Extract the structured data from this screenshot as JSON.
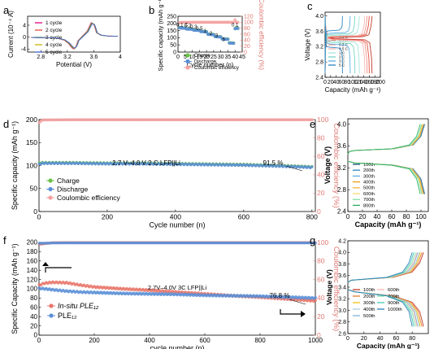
{
  "figure": {
    "colors": {
      "axis": "#000000",
      "pink": "#f4a1a1",
      "green": "#6cc04a",
      "blue": "#5b8fd6",
      "red": "#e8756a",
      "ce_axis": "#e07a73"
    }
  },
  "chart_data": [
    {
      "panel": "a",
      "type": "line",
      "xlabel": "Potential (V)",
      "ylabel": "Current (10⁻⁴ A)",
      "xlim": [
        2.6,
        4.0
      ],
      "ylim": [
        -5,
        7
      ],
      "xticks": [
        2.8,
        3.2,
        3.6,
        4.0
      ],
      "yticks": [
        -4,
        0,
        4
      ],
      "legend_position": "top-left",
      "series": [
        {
          "name": "1 cycle",
          "color": "#e6007e"
        },
        {
          "name": "2 cycle",
          "color": "#e74c3c"
        },
        {
          "name": "3 cycle",
          "color": "#27ae60"
        },
        {
          "name": "4 cycle",
          "color": "#c8b400"
        },
        {
          "name": "5 cycle",
          "color": "#3a5fcd"
        }
      ],
      "curve": {
        "x": [
          2.65,
          2.9,
          3.05,
          3.15,
          3.22,
          3.27,
          3.3,
          3.33,
          3.36,
          3.42,
          3.5,
          3.56,
          3.6,
          3.64,
          3.7,
          3.8,
          3.95
        ],
        "y": [
          -0.1,
          -0.2,
          -0.4,
          -1.0,
          -2.2,
          -3.6,
          -4.0,
          -3.2,
          -1.2,
          0.2,
          2.0,
          4.9,
          4.4,
          1.5,
          0.7,
          0.4,
          0.3
        ]
      }
    },
    {
      "panel": "b",
      "type": "scatter",
      "xlabel": "Cycle number (n)",
      "ylabel": "Specific capacity (mAh g⁻¹)",
      "y2label": "Coulombic efficiency (%)",
      "xlim": [
        0,
        45
      ],
      "ylim": [
        0,
        250
      ],
      "y2lim": [
        0,
        120
      ],
      "xticks": [
        0,
        5,
        10,
        15,
        20,
        25,
        30,
        35,
        40,
        45
      ],
      "yticks": [
        0,
        50,
        100,
        150,
        200,
        250
      ],
      "y2ticks": [
        0,
        20,
        40,
        60,
        80,
        100,
        120
      ],
      "legend": [
        "Charge",
        "Discharge",
        "Coulombic efficiency"
      ],
      "legend_position": "bottom-left",
      "rate_labels": [
        "0.1 C",
        "0.2",
        "0.3",
        "0.5",
        "1",
        "2",
        "3",
        "5",
        "0.1"
      ],
      "rate_label_points": [
        [
          3,
          180
        ],
        [
          7,
          174
        ],
        [
          11,
          166
        ],
        [
          15,
          154
        ],
        [
          19,
          136
        ],
        [
          23,
          120
        ],
        [
          27,
          104
        ],
        [
          32,
          78
        ],
        [
          40,
          178
        ]
      ],
      "series": [
        {
          "name": "Charge",
          "color": "#6cc04a",
          "x": [
            1,
            2,
            3,
            4,
            5,
            6,
            7,
            8,
            9,
            10,
            11,
            12,
            13,
            14,
            15,
            16,
            17,
            18,
            19,
            20,
            21,
            22,
            23,
            24,
            25,
            26,
            27,
            28,
            29,
            30,
            31,
            32,
            33,
            34,
            35,
            36,
            37,
            38,
            39,
            40,
            41,
            42
          ],
          "y": [
            172,
            170,
            169,
            168,
            168,
            163,
            162,
            162,
            161,
            161,
            155,
            154,
            154,
            153,
            153,
            145,
            144,
            144,
            143,
            143,
            126,
            125,
            124,
            124,
            123,
            110,
            109,
            108,
            108,
            107,
            93,
            92,
            92,
            91,
            91,
            65,
            64,
            64,
            63,
            165,
            168,
            167
          ]
        },
        {
          "name": "Discharge",
          "color": "#5b8fd6",
          "x": [
            1,
            2,
            3,
            4,
            5,
            6,
            7,
            8,
            9,
            10,
            11,
            12,
            13,
            14,
            15,
            16,
            17,
            18,
            19,
            20,
            21,
            22,
            23,
            24,
            25,
            26,
            27,
            28,
            29,
            30,
            31,
            32,
            33,
            34,
            35,
            36,
            37,
            38,
            39,
            40,
            41,
            42
          ],
          "y": [
            170,
            168,
            167,
            167,
            166,
            161,
            160,
            160,
            159,
            159,
            153,
            152,
            152,
            151,
            151,
            143,
            142,
            142,
            141,
            141,
            124,
            123,
            122,
            122,
            121,
            108,
            107,
            106,
            106,
            105,
            91,
            90,
            90,
            89,
            89,
            63,
            62,
            62,
            61,
            163,
            166,
            165
          ]
        },
        {
          "name": "Coulombic efficiency",
          "color": "#f4a1a1",
          "axis": "right",
          "x": [
            1,
            2,
            3,
            4,
            5,
            6,
            7,
            8,
            9,
            10,
            11,
            12,
            13,
            14,
            15,
            16,
            17,
            18,
            19,
            20,
            21,
            22,
            23,
            24,
            25,
            26,
            27,
            28,
            29,
            30,
            31,
            32,
            33,
            34,
            35,
            36,
            37,
            38,
            39,
            40,
            41,
            42
          ],
          "y": [
            98,
            99.5,
            99.6,
            99.5,
            99.7,
            99.6,
            99.8,
            99.7,
            99.6,
            99.8,
            99.7,
            99.9,
            99.8,
            99.7,
            99.8,
            99.9,
            99.8,
            99.7,
            99.8,
            99.9,
            99.8,
            99.7,
            99.9,
            99.8,
            99.8,
            99.9,
            99.8,
            99.7,
            99.9,
            99.8,
            99.9,
            99.8,
            99.9,
            99.8,
            99.9,
            99.8,
            99.7,
            99.9,
            99.8,
            108,
            100,
            99.8
          ]
        }
      ]
    },
    {
      "panel": "c",
      "type": "line",
      "xlabel": "Capacity (mAh g⁻¹)",
      "ylabel": "Voltage (V)",
      "xlim": [
        0,
        200
      ],
      "ylim": [
        2.4,
        4.1
      ],
      "xticks": [
        0,
        20,
        40,
        60,
        80,
        100,
        120,
        140,
        160,
        180,
        200
      ],
      "yticks": [
        2.4,
        2.8,
        3.2,
        3.6,
        4.0
      ],
      "legend_position": "center-left",
      "series": [
        {
          "name": "0.1 C",
          "color": "#c0392b",
          "capacity": 170,
          "plateau_charge": 3.45,
          "plateau_discharge": 3.4
        },
        {
          "name": "0.2 C",
          "color": "#e74c3c",
          "capacity": 160,
          "plateau_charge": 3.46,
          "plateau_discharge": 3.39
        },
        {
          "name": "0.3 C",
          "color": "#f1948a",
          "capacity": 152,
          "plateau_charge": 3.47,
          "plateau_discharge": 3.38
        },
        {
          "name": "0.5 C",
          "color": "#f5b7b1",
          "capacity": 144,
          "plateau_charge": 3.48,
          "plateau_discharge": 3.37
        },
        {
          "name": "1 C",
          "color": "#a3e4d7",
          "capacity": 124,
          "plateau_charge": 3.5,
          "plateau_discharge": 3.34
        },
        {
          "name": "2 C",
          "color": "#76d7c4",
          "capacity": 108,
          "plateau_charge": 3.53,
          "plateau_discharge": 3.3
        },
        {
          "name": "3 C",
          "color": "#5dade2",
          "capacity": 91,
          "plateau_charge": 3.56,
          "plateau_discharge": 3.26
        },
        {
          "name": "5 C",
          "color": "#2e86c1",
          "capacity": 63,
          "plateau_charge": 3.62,
          "plateau_discharge": 3.18
        }
      ]
    },
    {
      "panel": "d",
      "type": "scatter",
      "xlabel": "Cycle number (n)",
      "ylabel": "Specific capacity (mAh g⁻¹)",
      "y2label": "Coulombic efficiency (%)",
      "xlim": [
        0,
        810
      ],
      "ylim": [
        0,
        200
      ],
      "y2lim": [
        0,
        100
      ],
      "xticks": [
        0,
        200,
        400,
        600,
        800
      ],
      "yticks": [
        0,
        50,
        100,
        150,
        200
      ],
      "y2ticks": [
        0,
        20,
        40,
        60,
        80,
        100
      ],
      "annotations": [
        "2.7 V–4.0 V 2 C LFP||Li",
        "91.5 %"
      ],
      "legend": [
        "Charge",
        "Discharge",
        "Coulombic efficiency"
      ],
      "legend_position": "bottom-left",
      "series": [
        {
          "name": "Charge",
          "color": "#6cc04a",
          "x": [
            1,
            10,
            50,
            100,
            200,
            300,
            400,
            500,
            600,
            700,
            800
          ],
          "y": [
            105,
            106,
            106,
            106,
            105,
            105,
            104,
            103,
            102,
            100,
            97
          ]
        },
        {
          "name": "Discharge",
          "color": "#5b8fd6",
          "x": [
            1,
            10,
            50,
            100,
            200,
            300,
            400,
            500,
            600,
            700,
            800
          ],
          "y": [
            103,
            105,
            105,
            105,
            104,
            104,
            103,
            102,
            101,
            99,
            96
          ]
        },
        {
          "name": "Coulombic efficiency",
          "color": "#f4a1a1",
          "axis": "right",
          "x": [
            1,
            10,
            50,
            100,
            200,
            300,
            400,
            500,
            600,
            700,
            800
          ],
          "y": [
            97,
            99.6,
            99.7,
            99.8,
            99.8,
            99.8,
            99.8,
            99.8,
            99.8,
            99.8,
            99.8
          ]
        }
      ]
    },
    {
      "panel": "e",
      "type": "line",
      "xlabel": "Capacity (mAh g⁻¹)",
      "ylabel": "Voltage (V)",
      "xlim": [
        0,
        110
      ],
      "ylim": [
        2.4,
        4.1
      ],
      "xticks": [
        0,
        20,
        40,
        60,
        80,
        100
      ],
      "yticks": [
        2.4,
        2.8,
        3.2,
        3.6,
        4.0
      ],
      "legend_position": "bottom-right",
      "series": [
        {
          "name": "100th",
          "color": "#1a5276",
          "capacity": 105
        },
        {
          "name": "200th",
          "color": "#2e86c1",
          "capacity": 104.5
        },
        {
          "name": "300th",
          "color": "#5dade2",
          "capacity": 104
        },
        {
          "name": "400th",
          "color": "#f39c12",
          "capacity": 103.5
        },
        {
          "name": "500th",
          "color": "#f5b041",
          "capacity": 103
        },
        {
          "name": "600th",
          "color": "#f7dc6f",
          "capacity": 102
        },
        {
          "name": "700th",
          "color": "#82e0aa",
          "capacity": 101
        },
        {
          "name": "800th",
          "color": "#27ae60",
          "capacity": 99
        }
      ]
    },
    {
      "panel": "f",
      "type": "scatter",
      "xlabel": "cycle number (n)",
      "ylabel": "Specific Capacity (mAh g⁻¹)",
      "y2label": "Coulombic efficiency (%)",
      "xlim": [
        0,
        1000
      ],
      "ylim": [
        0,
        200
      ],
      "y2lim": [
        0,
        100
      ],
      "xticks": [
        0,
        200,
        400,
        600,
        800,
        1000
      ],
      "yticks": [
        0,
        20,
        40,
        60,
        80,
        100,
        120,
        140,
        160,
        180,
        200
      ],
      "y2ticks": [
        0,
        20,
        40,
        60,
        80,
        100
      ],
      "annotations": [
        "2.7V–4.0V 3C LFP||Li",
        "76.8 %"
      ],
      "legend": [
        "In-situ PLE₁₂",
        "PLE₁₂"
      ],
      "legend_position": "bottom-left",
      "series": [
        {
          "name": "In-situ PLE₁₂",
          "color": "#e8756a",
          "x": [
            1,
            20,
            50,
            100,
            150,
            200,
            300,
            400,
            500,
            600,
            700,
            800,
            900,
            1000
          ],
          "y": [
            108,
            112,
            114,
            113,
            108,
            104,
            100,
            97,
            93,
            89,
            85,
            82,
            78,
            74
          ]
        },
        {
          "name": "PLE₁₂",
          "color": "#5b8fd6",
          "x": [
            1,
            20,
            50,
            100,
            150,
            200,
            300,
            400,
            500,
            600,
            700,
            800,
            900,
            1000
          ],
          "y": [
            101,
            100,
            98,
            95,
            93,
            92,
            90,
            89,
            88,
            86,
            85,
            84,
            82,
            80
          ]
        },
        {
          "name": "CE In-situ PLE₁₂",
          "color": "#e8756a",
          "axis": "right",
          "x": [
            1,
            50,
            100,
            200,
            300,
            400,
            500,
            600,
            700,
            800,
            900,
            1000
          ],
          "y": [
            98,
            99.7,
            99.8,
            99.8,
            99.8,
            99.8,
            99.8,
            99.8,
            99.8,
            99.8,
            99.8,
            99.8
          ]
        },
        {
          "name": "CE PLE₁₂",
          "color": "#5b8fd6",
          "axis": "right",
          "x": [
            1,
            50,
            100,
            200,
            300,
            400,
            500,
            600,
            700,
            800,
            900,
            1000
          ],
          "y": [
            99,
            99.4,
            99.5,
            99.5,
            99.5,
            99.5,
            99.5,
            99.5,
            99.5,
            99.5,
            99.5,
            99.5
          ]
        }
      ]
    },
    {
      "panel": "g",
      "type": "line",
      "xlabel": "Capacity (mAh g⁻¹)",
      "ylabel": "Voltage (V)",
      "xlim": [
        0,
        100
      ],
      "ylim": [
        2.6,
        4.2
      ],
      "xticks": [
        0,
        20,
        40,
        60,
        80
      ],
      "yticks": [
        2.6,
        2.8,
        3.0,
        3.2,
        3.4,
        3.6,
        3.8,
        4.0,
        4.2
      ],
      "legend_position": "bottom-left",
      "series": [
        {
          "name": "100th",
          "color": "#c0392b",
          "capacity": 94
        },
        {
          "name": "200th",
          "color": "#e67e22",
          "capacity": 92
        },
        {
          "name": "300th",
          "color": "#f1c40f",
          "capacity": 90
        },
        {
          "name": "400th",
          "color": "#a9cce3",
          "capacity": 89
        },
        {
          "name": "500th",
          "color": "#7fb3d5",
          "capacity": 87
        },
        {
          "name": "600th",
          "color": "#f5b7b1",
          "capacity": 86
        },
        {
          "name": "700th",
          "color": "#82e0aa",
          "capacity": 84
        },
        {
          "name": "900th",
          "color": "#48c9b0",
          "capacity": 82
        },
        {
          "name": "1000th",
          "color": "#2980b9",
          "capacity": 80
        }
      ]
    }
  ]
}
